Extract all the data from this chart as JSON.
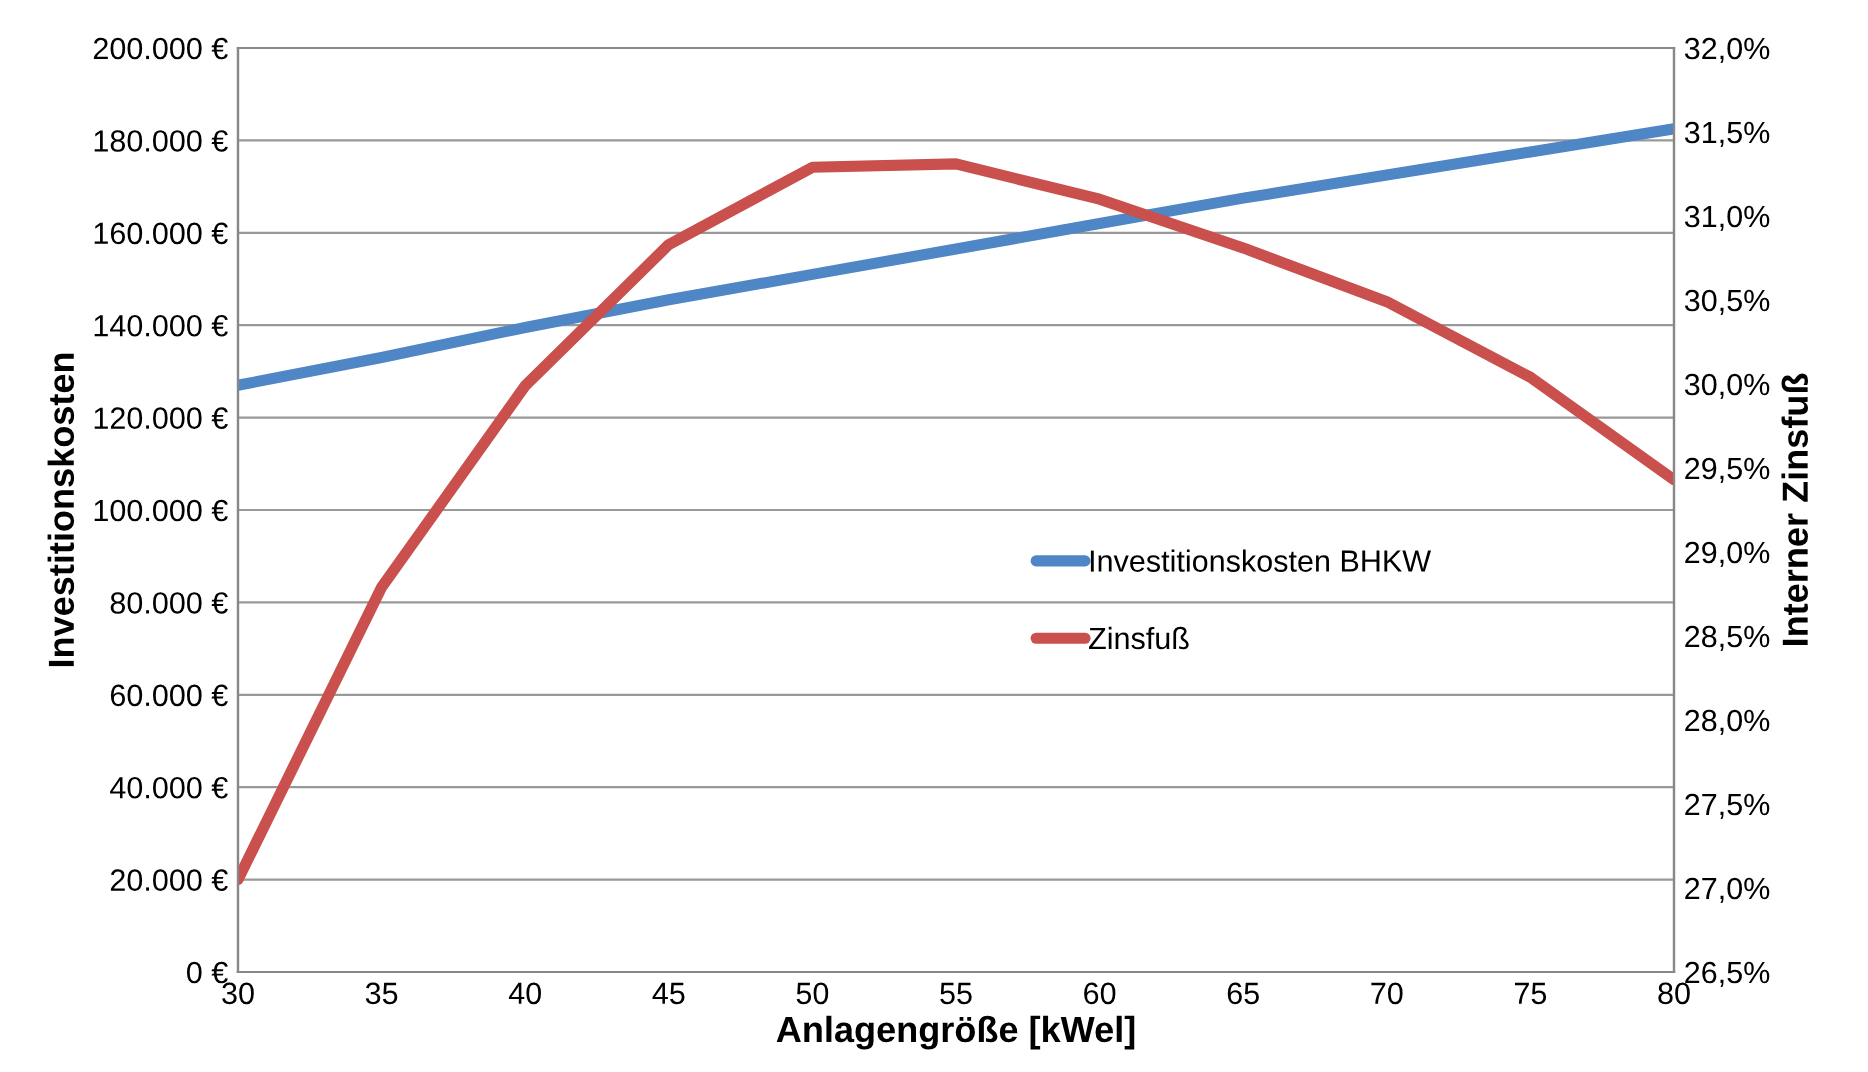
{
  "chart_data": {
    "type": "line",
    "xlabel": "Anlagengröße [kWel]",
    "ylabel": "Investitionskosten",
    "y2label": "Interner Zinsfuß",
    "x": [
      30,
      35,
      40,
      45,
      50,
      55,
      60,
      65,
      70,
      75,
      80
    ],
    "series": [
      {
        "name": "Investitionskosten BHKW",
        "color": "#4f86c6",
        "values": [
          127000,
          133000,
          139500,
          145500,
          151000,
          156500,
          162000,
          167500,
          172500,
          177500,
          182500
        ]
      },
      {
        "name": "Zinsfuß",
        "color": "#c9504c",
        "axis": "y2",
        "values": [
          27.05,
          28.79,
          29.99,
          30.83,
          31.29,
          31.31,
          31.1,
          30.81,
          30.49,
          30.04,
          29.43
        ]
      }
    ],
    "xlim": [
      30,
      80
    ],
    "xticks": [
      30,
      35,
      40,
      45,
      50,
      55,
      60,
      65,
      70,
      75,
      80
    ],
    "ylim": [
      0,
      200000
    ],
    "yticks": [
      {
        "value": 0,
        "label": "0 €"
      },
      {
        "value": 20000,
        "label": "20.000 €"
      },
      {
        "value": 40000,
        "label": "40.000 €"
      },
      {
        "value": 60000,
        "label": "60.000 €"
      },
      {
        "value": 80000,
        "label": "80.000 €"
      },
      {
        "value": 100000,
        "label": "100.000 €"
      },
      {
        "value": 120000,
        "label": "120.000 €"
      },
      {
        "value": 140000,
        "label": "140.000 €"
      },
      {
        "value": 160000,
        "label": "160.000 €"
      },
      {
        "value": 180000,
        "label": "180.000 €"
      },
      {
        "value": 200000,
        "label": "200.000 €"
      }
    ],
    "y2lim": [
      26.5,
      32.0
    ],
    "y2ticks": [
      {
        "value": 26.5,
        "label": "26,5%"
      },
      {
        "value": 27.0,
        "label": "27,0%"
      },
      {
        "value": 27.5,
        "label": "27,5%"
      },
      {
        "value": 28.0,
        "label": "28,0%"
      },
      {
        "value": 28.5,
        "label": "28,5%"
      },
      {
        "value": 29.0,
        "label": "29,0%"
      },
      {
        "value": 29.5,
        "label": "29,5%"
      },
      {
        "value": 30.0,
        "label": "30,0%"
      },
      {
        "value": 30.5,
        "label": "30,5%"
      },
      {
        "value": 31.0,
        "label": "31,0%"
      },
      {
        "value": 31.5,
        "label": "31,5%"
      },
      {
        "value": 32.0,
        "label": "32,0%"
      }
    ],
    "grid": "y",
    "legend": "center right",
    "marker": "none",
    "line_style": "solid"
  }
}
